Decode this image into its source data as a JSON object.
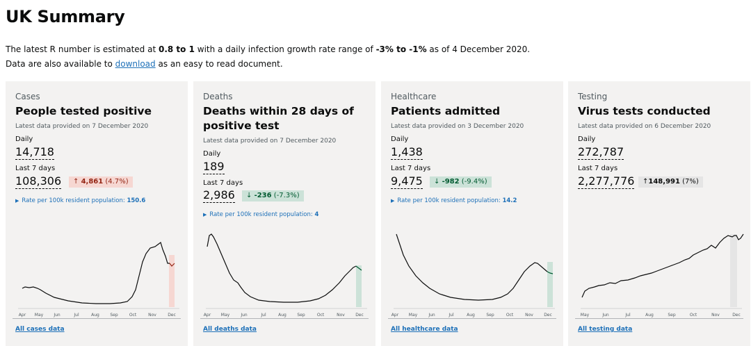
{
  "page": {
    "title": "UK Summary",
    "intro": {
      "p1_a": "The latest R number is estimated at ",
      "r_range": "0.8 to 1",
      "p1_b": " with a daily infection growth rate range of ",
      "growth_range": "-3% to -1%",
      "p1_c": " as of 4 December 2020.",
      "p2_a": "Data are also available to ",
      "download_link": "download",
      "p2_b": " as an easy to read document."
    }
  },
  "colors": {
    "link": "#1d70b8",
    "card_bg": "#f3f2f1",
    "increase_bg": "#f6d7d2",
    "increase_text": "#942514",
    "decrease_bg": "#cce2d8",
    "decrease_text": "#005a30",
    "neutral_bg": "#e5e5e5"
  },
  "cards": [
    {
      "category": "Cases",
      "title": "People tested positive",
      "latest": "Latest data provided on 7 December 2020",
      "daily_label": "Daily",
      "daily_value": "14,718",
      "week_label": "Last 7 days",
      "week_value": "108,306",
      "change_arrow": "↑",
      "change_value": "4,861",
      "change_pct": "(4.7%)",
      "change_type": "up",
      "rate_label": "Rate per 100k resident population: ",
      "rate_value": "150.6",
      "link": "All cases data",
      "months": [
        "Apr",
        "May",
        "Jun",
        "Jul",
        "Aug",
        "Sep",
        "Oct",
        "Nov",
        "Dec"
      ]
    },
    {
      "category": "Deaths",
      "title": "Deaths within 28 days of positive test",
      "latest": "Latest data provided on 7 December 2020",
      "daily_label": "Daily",
      "daily_value": "189",
      "week_label": "Last 7 days",
      "week_value": "2,986",
      "change_arrow": "↓",
      "change_value": "-236",
      "change_pct": "(-7.3%)",
      "change_type": "down",
      "rate_label": "Rate per 100k resident population: ",
      "rate_value": "4",
      "link": "All deaths data",
      "months": [
        "Apr",
        "May",
        "Jun",
        "Jul",
        "Aug",
        "Sep",
        "Oct",
        "Nov",
        "Dec"
      ]
    },
    {
      "category": "Healthcare",
      "title": "Patients admitted",
      "latest": "Latest data provided on 3 December 2020",
      "daily_label": "Daily",
      "daily_value": "1,438",
      "week_label": "Last 7 days",
      "week_value": "9,475",
      "change_arrow": "↓",
      "change_value": "-982",
      "change_pct": "(-9.4%)",
      "change_type": "down",
      "rate_label": "Rate per 100k resident population: ",
      "rate_value": "14.2",
      "link": "All healthcare data",
      "months": [
        "Apr",
        "May",
        "Jun",
        "Jul",
        "Aug",
        "Sep",
        "Oct",
        "Nov",
        "Dec"
      ]
    },
    {
      "category": "Testing",
      "title": "Virus tests conducted",
      "latest": "Latest data provided on 6 December 2020",
      "daily_label": "Daily",
      "daily_value": "272,787",
      "week_label": "Last 7 days",
      "week_value": "2,277,776",
      "change_arrow": "↑",
      "change_value": "148,991",
      "change_pct": "(7%)",
      "change_type": "neutral",
      "link": "All testing data",
      "months": [
        "May",
        "Jun",
        "Jul",
        "Aug",
        "Sep",
        "Oct",
        "Nov",
        "Dec"
      ]
    }
  ]
}
